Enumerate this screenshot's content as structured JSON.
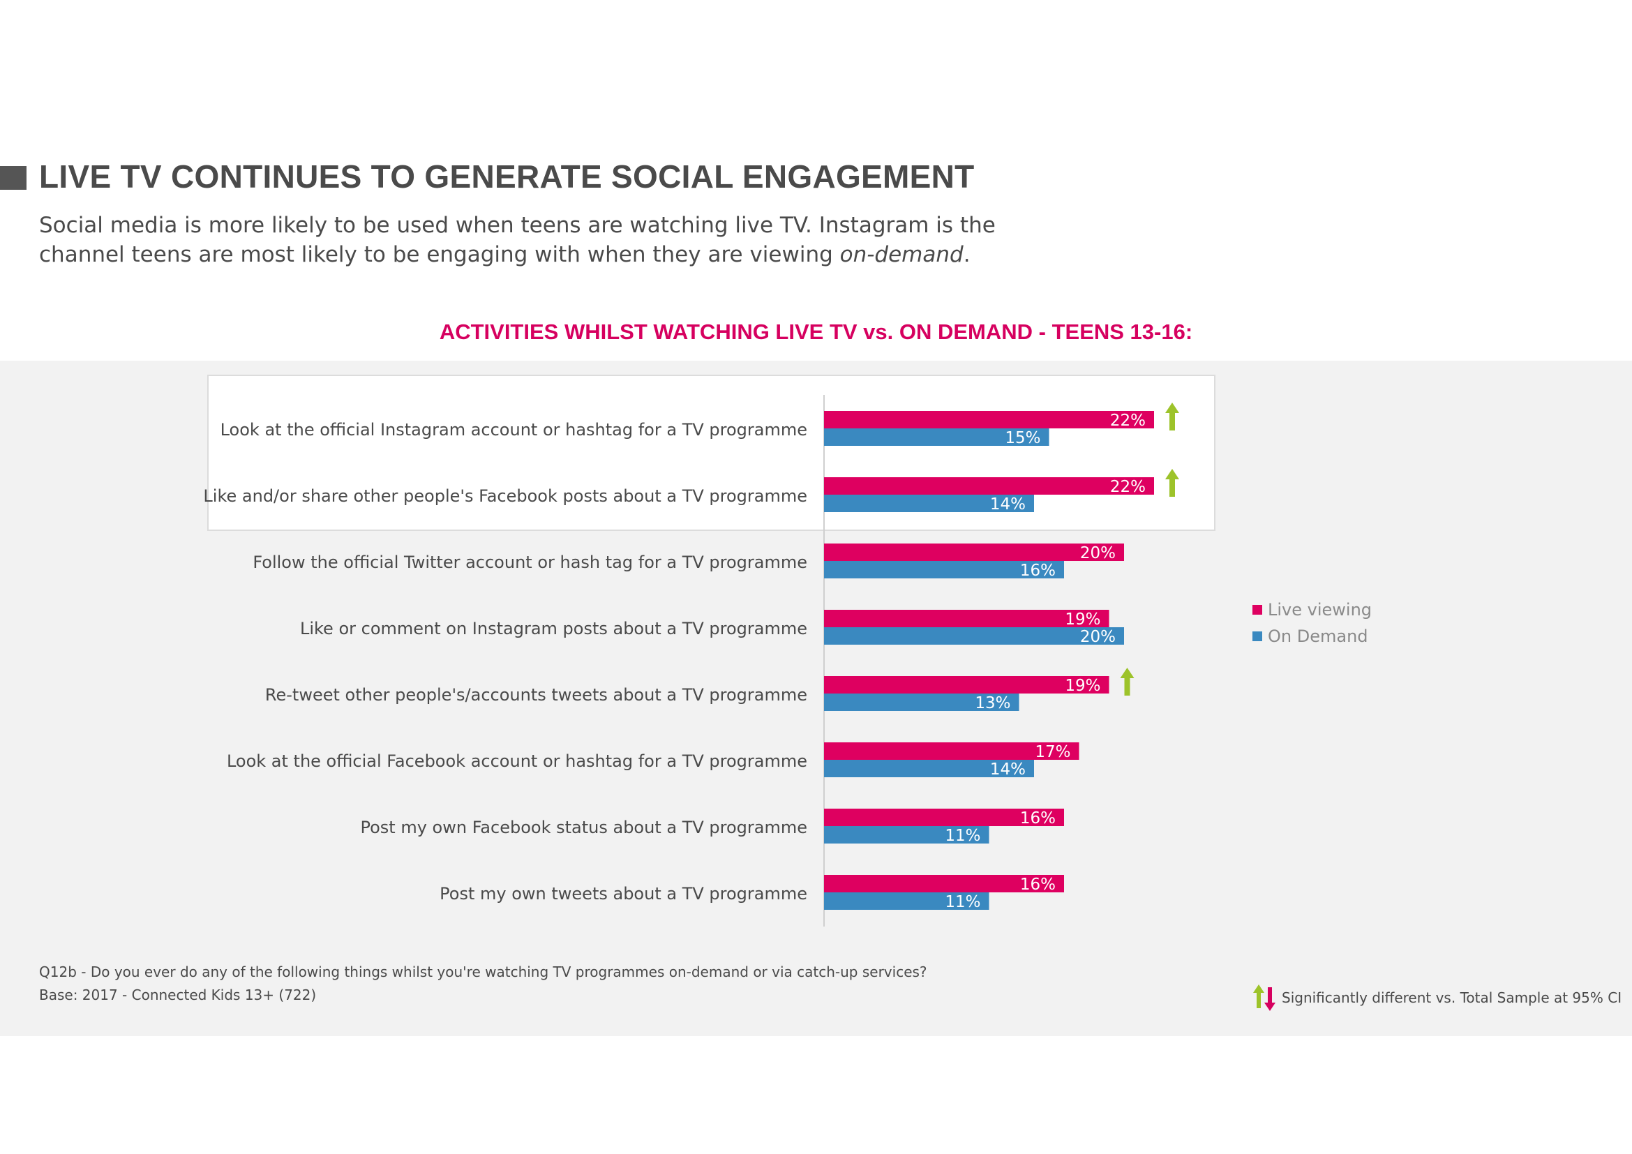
{
  "header": {
    "title": "LIVE TV CONTINUES TO GENERATE SOCIAL ENGAGEMENT",
    "subtitle_line1": "Social media is more likely to be used when teens are watching live TV.  Instagram is the",
    "subtitle_line2_prefix": "channel teens are most likely to be engaging with when they are viewing ",
    "subtitle_line2_emphasis": "on-demand",
    "subtitle_line2_suffix": "."
  },
  "colors": {
    "live": "#de0060",
    "on_demand": "#3a89c0",
    "arrow_up": "#9dc32a",
    "arrow_down": "#d6005f",
    "title_accent": "#d6005f"
  },
  "chart_data": {
    "type": "bar",
    "orientation": "horizontal",
    "title": "ACTIVITIES WHILST WATCHING LIVE TV vs. ON DEMAND - TEENS 13-16:",
    "categories": [
      "Look at the official Instagram account or hashtag for a TV programme",
      "Like and/or share other people's Facebook posts about a TV programme",
      "Follow the official Twitter account or hash tag for a TV programme",
      "Like or comment on Instagram posts about a TV programme",
      "Re-tweet other people's/accounts tweets about a TV programme",
      "Look at the official Facebook account or hashtag for a TV programme",
      "Post my own Facebook status about a TV programme",
      "Post my own tweets about a TV programme"
    ],
    "series": [
      {
        "name": "Live viewing",
        "values": [
          22,
          22,
          20,
          19,
          19,
          17,
          16,
          16
        ],
        "labels": [
          "22%",
          "22%",
          "20%",
          "19%",
          "19%",
          "17%",
          "16%",
          "16%"
        ]
      },
      {
        "name": "On Demand",
        "values": [
          15,
          14,
          16,
          20,
          13,
          14,
          11,
          11
        ],
        "labels": [
          "15%",
          "14%",
          "16%",
          "20%",
          "13%",
          "14%",
          "11%",
          "11%"
        ]
      }
    ],
    "significant_up": [
      true,
      true,
      false,
      false,
      true,
      false,
      false,
      false
    ],
    "legend_position": "right",
    "grid": false
  },
  "footnotes": {
    "question": "Q12b - Do you ever do any of the following things whilst you're watching TV programmes on-demand or via catch-up services?",
    "base": "Base: 2017 - Connected Kids 13+ (722)",
    "significance": "Significantly different vs. Total Sample at 95% CI"
  }
}
